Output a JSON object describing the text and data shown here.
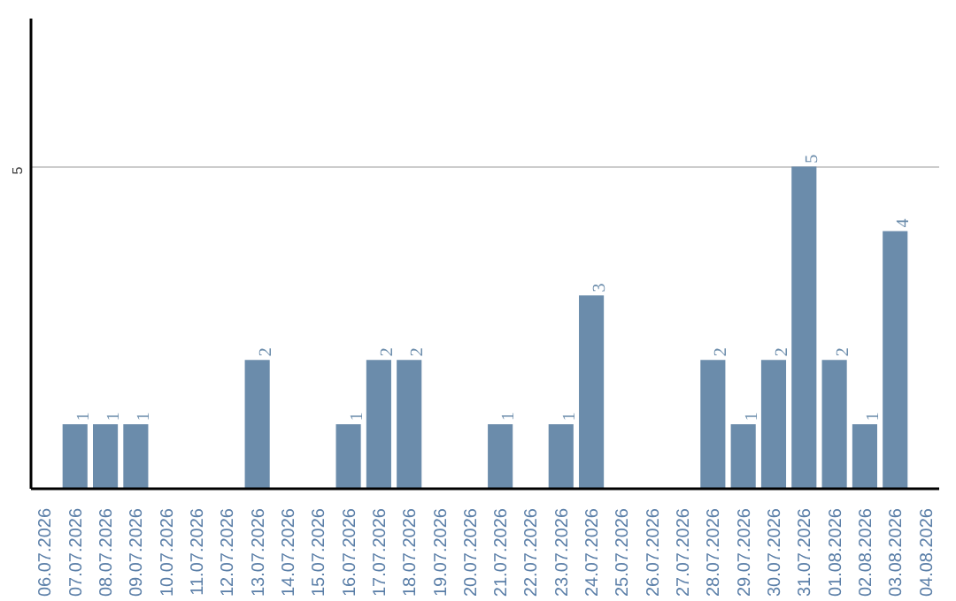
{
  "chart_data": {
    "type": "bar",
    "categories": [
      "06.07.2026",
      "07.07.2026",
      "08.07.2026",
      "09.07.2026",
      "10.07.2026",
      "11.07.2026",
      "12.07.2026",
      "13.07.2026",
      "14.07.2026",
      "15.07.2026",
      "16.07.2026",
      "17.07.2026",
      "18.07.2026",
      "19.07.2026",
      "20.07.2026",
      "21.07.2026",
      "22.07.2026",
      "23.07.2026",
      "24.07.2026",
      "25.07.2026",
      "26.07.2026",
      "27.07.2026",
      "28.07.2026",
      "29.07.2026",
      "30.07.2026",
      "31.07.2026",
      "01.08.2026",
      "02.08.2026",
      "03.08.2026",
      "04.08.2026"
    ],
    "values": [
      0,
      1,
      1,
      1,
      0,
      0,
      0,
      2,
      0,
      0,
      1,
      2,
      2,
      0,
      0,
      1,
      0,
      1,
      3,
      0,
      0,
      0,
      2,
      1,
      2,
      5,
      2,
      1,
      4,
      0
    ],
    "value_labels": [
      null,
      "1",
      "1",
      "1",
      null,
      null,
      null,
      "2",
      null,
      null,
      "1",
      "2",
      "2",
      null,
      null,
      "1",
      null,
      "1",
      "3",
      null,
      null,
      null,
      "2",
      "1",
      "2",
      "5",
      "2",
      "1",
      "4",
      null
    ],
    "color": "#6b8cab",
    "ylim": [
      0,
      7.3
    ],
    "yticks": [
      5
    ],
    "grid": "y"
  }
}
